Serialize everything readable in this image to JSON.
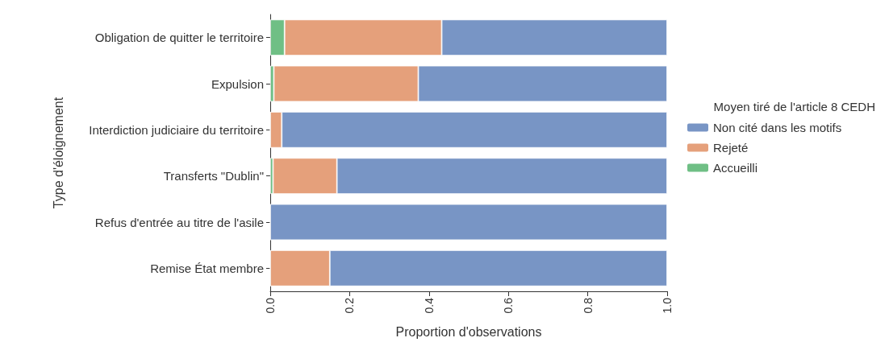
{
  "chart_data": {
    "type": "bar",
    "orientation": "horizontal",
    "stacked": true,
    "categories": [
      "Obligation de quitter le territoire",
      "Expulsion",
      "Interdiction judiciaire du territoire",
      "Transferts \"Dublin\"",
      "Refus d'entrée au titre de l'asile",
      "Remise État membre"
    ],
    "series": [
      {
        "name": "Accueilli",
        "color": "#6fbf85",
        "values": [
          0.036,
          0.009,
          0,
          0.007,
          0,
          0
        ]
      },
      {
        "name": "Rejeté",
        "color": "#e5a07b",
        "values": [
          0.396,
          0.364,
          0.029,
          0.161,
          null,
          0.15
        ]
      },
      {
        "name": "Non cité dans les motifs",
        "color": "#7895c5",
        "values": [
          0.568,
          0.627,
          0.971,
          0.832,
          1,
          0.85
        ]
      }
    ],
    "xlim": [
      0,
      1
    ],
    "xticks": [
      {
        "value": 0,
        "label": "0.0"
      },
      {
        "value": 0.2,
        "label": "0.2"
      },
      {
        "value": 0.4,
        "label": "0.4"
      },
      {
        "value": 0.6,
        "label": "0.6"
      },
      {
        "value": 0.8,
        "label": "0.8"
      },
      {
        "value": 1,
        "label": "1.0"
      }
    ],
    "xlabel": "Proportion d'observations",
    "ylabel": "Type d'éloignement",
    "legend_title": "Moyen tiré de l'article 8 CEDH",
    "legend": "right",
    "grid": false
  }
}
